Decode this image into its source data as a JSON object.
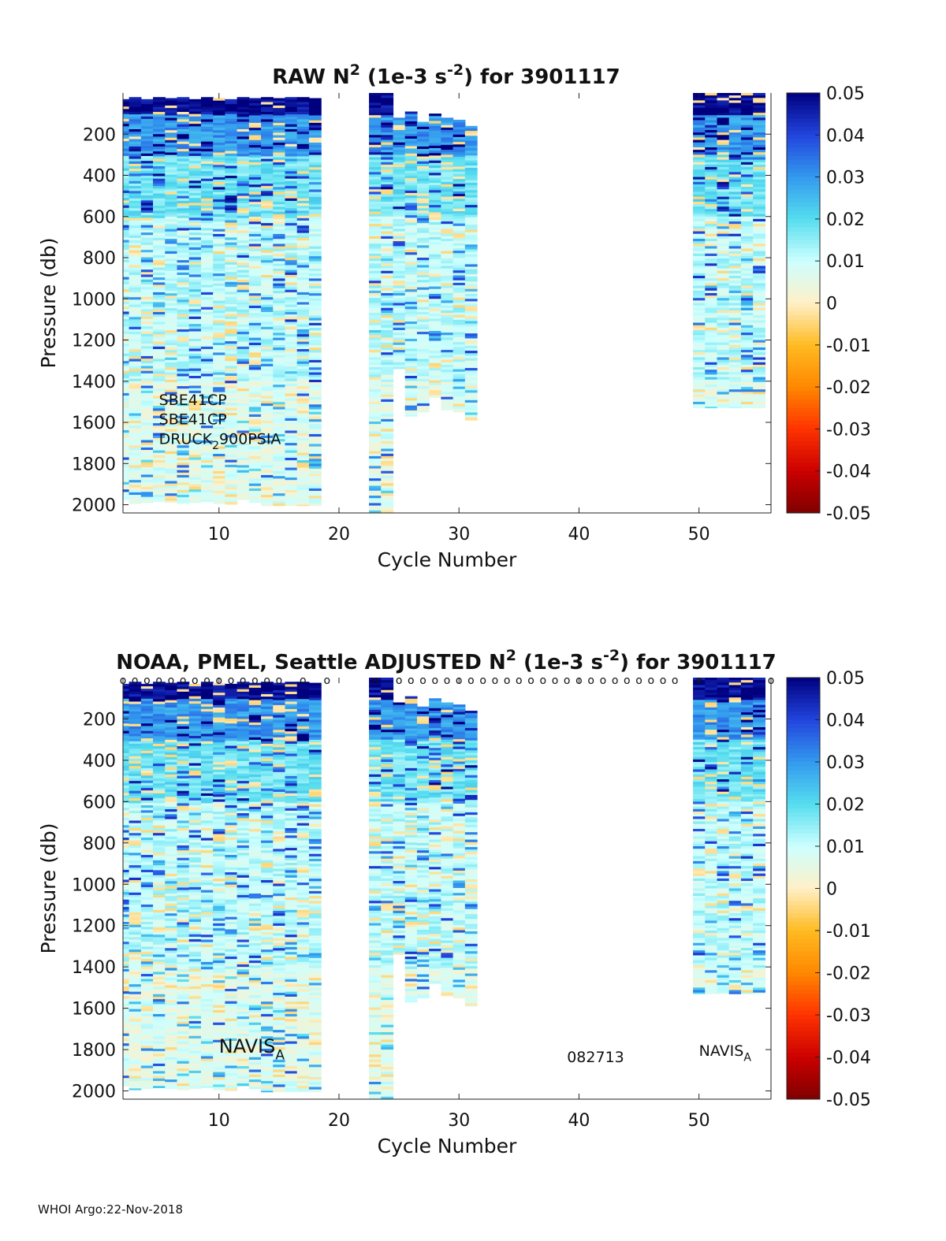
{
  "footer": "WHOI Argo:22-Nov-2018",
  "colorbar": {
    "min": -0.05,
    "max": 0.05,
    "ticks": [
      0.05,
      0.04,
      0.03,
      0.02,
      0.01,
      0,
      -0.01,
      -0.02,
      -0.03,
      -0.04,
      -0.05
    ],
    "tick_labels": [
      "0.05",
      "0.04",
      "0.03",
      "0.02",
      "0.01",
      "0",
      "-0.01",
      "-0.02",
      "-0.03",
      "-0.04",
      "-0.05"
    ],
    "colormap": [
      "#7f0000",
      "#cc0000",
      "#ff3300",
      "#ff8800",
      "#ffbb22",
      "#fff0c8",
      "#ccffff",
      "#55ddee",
      "#3399ee",
      "#2244dd",
      "#00007f"
    ]
  },
  "chart_data": [
    {
      "type": "heatmap",
      "title_parts": [
        "RAW N",
        "2",
        " (1e-3 s",
        "-2",
        ") for 3901117"
      ],
      "xlabel": "Cycle Number",
      "ylabel": "Pressure (db)",
      "xlim": [
        2,
        56
      ],
      "ylim": [
        0,
        2040
      ],
      "xticks": [
        10,
        20,
        30,
        40,
        50
      ],
      "xtick_labels": [
        "10",
        "20",
        "30",
        "40",
        "50"
      ],
      "yticks": [
        200,
        400,
        600,
        800,
        1000,
        1200,
        1400,
        1600,
        1800,
        2000
      ],
      "ytick_labels": [
        "200",
        "400",
        "600",
        "800",
        "1000",
        "1200",
        "1400",
        "1600",
        "1800",
        "2000"
      ],
      "annotations": [
        {
          "parts": [
            "SBE41CP"
          ],
          "x": 5,
          "y": 1515
        },
        {
          "parts": [
            "SBE41CP"
          ],
          "x": 5,
          "y": 1610
        },
        {
          "parts": [
            "DRUCK",
            "2",
            "900PSIA"
          ],
          "x": 5,
          "y": 1705
        }
      ],
      "profiles": [
        {
          "cycle": 2,
          "top": 30,
          "bottom": 1975
        },
        {
          "cycle": 3,
          "top": 20,
          "bottom": 1995
        },
        {
          "cycle": 4,
          "top": 30,
          "bottom": 1990
        },
        {
          "cycle": 5,
          "top": 20,
          "bottom": 1985
        },
        {
          "cycle": 6,
          "top": 25,
          "bottom": 1990
        },
        {
          "cycle": 7,
          "top": 20,
          "bottom": 1995
        },
        {
          "cycle": 8,
          "top": 30,
          "bottom": 1990
        },
        {
          "cycle": 9,
          "top": 20,
          "bottom": 1985
        },
        {
          "cycle": 10,
          "top": 25,
          "bottom": 1995
        },
        {
          "cycle": 11,
          "top": 30,
          "bottom": 2000
        },
        {
          "cycle": 12,
          "top": 20,
          "bottom": 1975
        },
        {
          "cycle": 13,
          "top": 25,
          "bottom": 1990
        },
        {
          "cycle": 14,
          "top": 20,
          "bottom": 2005
        },
        {
          "cycle": 15,
          "top": 25,
          "bottom": 2005
        },
        {
          "cycle": 16,
          "top": 20,
          "bottom": 2005
        },
        {
          "cycle": 17,
          "top": 20,
          "bottom": 2005
        },
        {
          "cycle": 18,
          "top": 25,
          "bottom": 2005
        },
        {
          "cycle": 23,
          "top": 0,
          "bottom": 2040
        },
        {
          "cycle": 24,
          "top": 0,
          "bottom": 2040
        },
        {
          "cycle": 25,
          "top": 120,
          "bottom": 1340
        },
        {
          "cycle": 26,
          "top": 90,
          "bottom": 1570
        },
        {
          "cycle": 27,
          "top": 140,
          "bottom": 1550
        },
        {
          "cycle": 28,
          "top": 100,
          "bottom": 1480
        },
        {
          "cycle": 29,
          "top": 120,
          "bottom": 1540
        },
        {
          "cycle": 30,
          "top": 130,
          "bottom": 1550
        },
        {
          "cycle": 31,
          "top": 160,
          "bottom": 1590
        },
        {
          "cycle": 50,
          "top": 0,
          "bottom": 1530
        },
        {
          "cycle": 51,
          "top": 0,
          "bottom": 1530
        },
        {
          "cycle": 52,
          "top": 0,
          "bottom": 1530
        },
        {
          "cycle": 53,
          "top": 0,
          "bottom": 1530
        },
        {
          "cycle": 54,
          "top": 0,
          "bottom": 1530
        },
        {
          "cycle": 55,
          "top": 0,
          "bottom": 1530
        }
      ]
    },
    {
      "type": "heatmap",
      "title_parts": [
        "NOAA, PMEL, Seattle  ADJUSTED N",
        "2",
        " (1e-3 s",
        "-2",
        ") for 3901117"
      ],
      "xlabel": "Cycle Number",
      "ylabel": "Pressure (db)",
      "xlim": [
        2,
        56
      ],
      "ylim": [
        0,
        2040
      ],
      "xticks": [
        10,
        20,
        30,
        40,
        50
      ],
      "xtick_labels": [
        "10",
        "20",
        "30",
        "40",
        "50"
      ],
      "yticks": [
        200,
        400,
        600,
        800,
        1000,
        1200,
        1400,
        1600,
        1800,
        2000
      ],
      "ytick_labels": [
        "200",
        "400",
        "600",
        "800",
        "1000",
        "1200",
        "1400",
        "1600",
        "1800",
        "2000"
      ],
      "marker": "o",
      "marker_cycles": [
        2,
        3,
        4,
        5,
        6,
        7,
        8,
        9,
        10,
        11,
        12,
        13,
        14,
        15,
        17,
        19,
        23,
        25,
        26,
        27,
        28,
        29,
        30,
        31,
        32,
        33,
        34,
        35,
        36,
        37,
        38,
        39,
        40,
        41,
        42,
        43,
        44,
        45,
        46,
        47,
        48,
        50,
        56
      ],
      "annotations": [
        {
          "parts": [
            "NAVIS",
            "A"
          ],
          "x": 10,
          "y": 1815,
          "large": true
        },
        {
          "parts": [
            "082713"
          ],
          "x": 39,
          "y": 1860
        },
        {
          "parts": [
            "NAVIS",
            "A"
          ],
          "x": 50,
          "y": 1830
        }
      ],
      "profiles": [
        {
          "cycle": 2,
          "top": 30,
          "bottom": 1975
        },
        {
          "cycle": 3,
          "top": 20,
          "bottom": 1995
        },
        {
          "cycle": 4,
          "top": 30,
          "bottom": 1990
        },
        {
          "cycle": 5,
          "top": 20,
          "bottom": 1985
        },
        {
          "cycle": 6,
          "top": 25,
          "bottom": 1990
        },
        {
          "cycle": 7,
          "top": 20,
          "bottom": 1995
        },
        {
          "cycle": 8,
          "top": 30,
          "bottom": 1990
        },
        {
          "cycle": 9,
          "top": 20,
          "bottom": 1985
        },
        {
          "cycle": 10,
          "top": 25,
          "bottom": 1995
        },
        {
          "cycle": 11,
          "top": 30,
          "bottom": 2000
        },
        {
          "cycle": 12,
          "top": 20,
          "bottom": 1975
        },
        {
          "cycle": 13,
          "top": 25,
          "bottom": 1990
        },
        {
          "cycle": 14,
          "top": 20,
          "bottom": 2005
        },
        {
          "cycle": 15,
          "top": 25,
          "bottom": 2005
        },
        {
          "cycle": 16,
          "top": 20,
          "bottom": 2005
        },
        {
          "cycle": 17,
          "top": 20,
          "bottom": 2005
        },
        {
          "cycle": 18,
          "top": 25,
          "bottom": 2005
        },
        {
          "cycle": 23,
          "top": 0,
          "bottom": 2040
        },
        {
          "cycle": 24,
          "top": 0,
          "bottom": 2040
        },
        {
          "cycle": 25,
          "top": 120,
          "bottom": 1340
        },
        {
          "cycle": 26,
          "top": 90,
          "bottom": 1570
        },
        {
          "cycle": 27,
          "top": 140,
          "bottom": 1550
        },
        {
          "cycle": 28,
          "top": 100,
          "bottom": 1480
        },
        {
          "cycle": 29,
          "top": 120,
          "bottom": 1540
        },
        {
          "cycle": 30,
          "top": 130,
          "bottom": 1550
        },
        {
          "cycle": 31,
          "top": 160,
          "bottom": 1590
        },
        {
          "cycle": 50,
          "top": 0,
          "bottom": 1530
        },
        {
          "cycle": 51,
          "top": 0,
          "bottom": 1530
        },
        {
          "cycle": 52,
          "top": 0,
          "bottom": 1530
        },
        {
          "cycle": 53,
          "top": 0,
          "bottom": 1530
        },
        {
          "cycle": 54,
          "top": 0,
          "bottom": 1530
        },
        {
          "cycle": 55,
          "top": 0,
          "bottom": 1530
        }
      ]
    }
  ]
}
